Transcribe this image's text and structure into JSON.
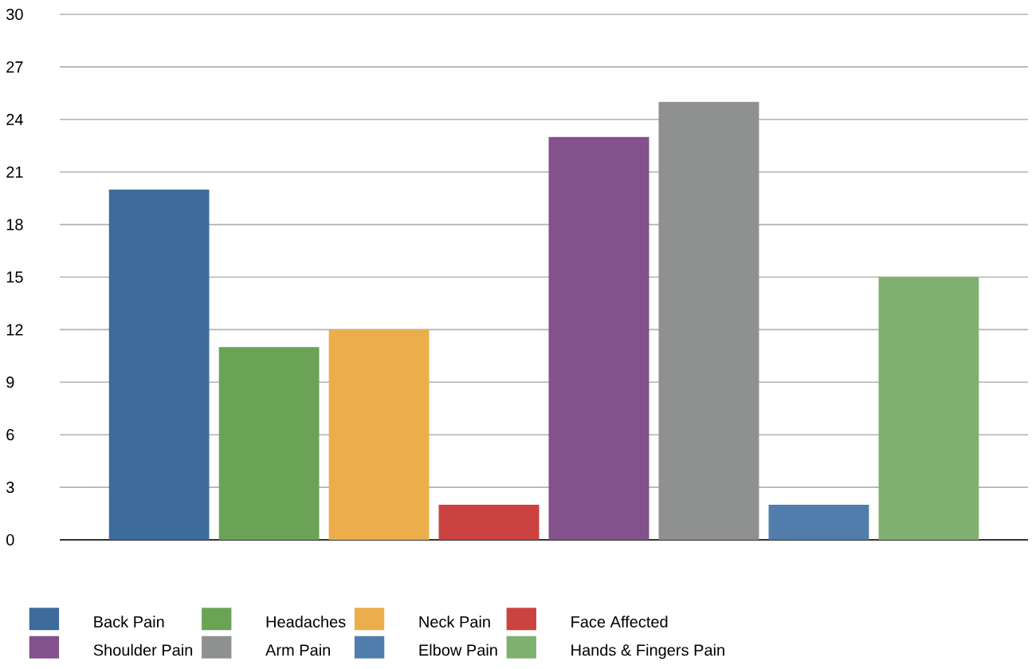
{
  "chart_data": {
    "type": "bar",
    "categories": [
      null
    ],
    "series": [
      {
        "name": "Back Pain",
        "color": "#3d6b9c",
        "values": [
          20
        ]
      },
      {
        "name": "Headaches",
        "color": "#6ba356",
        "values": [
          11
        ]
      },
      {
        "name": "Neck Pain",
        "color": "#ecae4b",
        "values": [
          12
        ]
      },
      {
        "name": "Face Affected",
        "color": "#cb4240",
        "values": [
          2
        ]
      },
      {
        "name": "Shoulder Pain",
        "color": "#83518b",
        "values": [
          23
        ]
      },
      {
        "name": "Arm Pain",
        "color": "#8f9190",
        "values": [
          25
        ]
      },
      {
        "name": "Elbow Pain",
        "color": "#507dab",
        "values": [
          2
        ]
      },
      {
        "name": "Hands & Fingers Pain",
        "color": "#80b06f",
        "values": [
          15
        ]
      }
    ],
    "ylim": [
      0,
      30
    ],
    "yticks": [
      0,
      3,
      6,
      9,
      12,
      15,
      18,
      21,
      24,
      27,
      30
    ],
    "grid": "y",
    "legend": "bottom"
  }
}
